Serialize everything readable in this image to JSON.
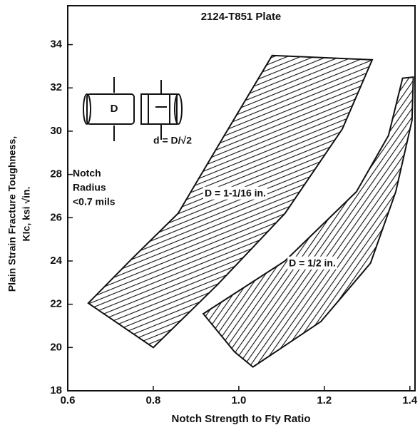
{
  "chart_data": {
    "type": "band",
    "title": "2124-T851 Plate",
    "x_label": "Notch Strength to Fty Ratio",
    "y_label": [
      "Plain Strain Fracture Toughness,",
      "KIc, ksi √in."
    ],
    "xlim": [
      0.6,
      1.412
    ],
    "ylim": [
      18,
      35.8
    ],
    "xticks": [
      0.6,
      0.8,
      {
        "value": 1,
        "label": "1.0"
      },
      1.2,
      1.4
    ],
    "yticks": [
      18,
      20,
      22,
      24,
      26,
      28,
      30,
      32,
      34
    ],
    "annotations": {
      "notch": [
        "Notch",
        "Radius",
        "<0.7 mils"
      ],
      "diameter": "D",
      "formula": "d = D/√2"
    },
    "series": [
      {
        "name": "D = 1-1/16 in.",
        "color": "#111111",
        "hatch_angle": -22,
        "left": {
          "x": [
            0.648,
            0.75,
            0.858,
            0.96,
            1.078
          ],
          "y": [
            22.05,
            24.1,
            26.2,
            29.6,
            33.5
          ]
        },
        "right": {
          "x": [
            0.8,
            0.95,
            1.108,
            1.242,
            1.312
          ],
          "y": [
            20.0,
            22.9,
            26.2,
            30.1,
            33.3
          ]
        }
      },
      {
        "name": "D = 1/2 in.",
        "color": "#111111",
        "hatch_angle": -55,
        "left": {
          "x": [
            0.917,
            1.108,
            1.275,
            1.35,
            1.383
          ],
          "y": [
            21.56,
            24.0,
            27.2,
            29.8,
            32.45
          ]
        },
        "right": {
          "x": [
            0.99,
            1.033,
            1.192,
            1.308,
            1.367,
            1.405,
            1.408
          ],
          "y": [
            19.8,
            19.1,
            21.2,
            23.9,
            27.2,
            30.5,
            32.5
          ]
        }
      }
    ]
  }
}
